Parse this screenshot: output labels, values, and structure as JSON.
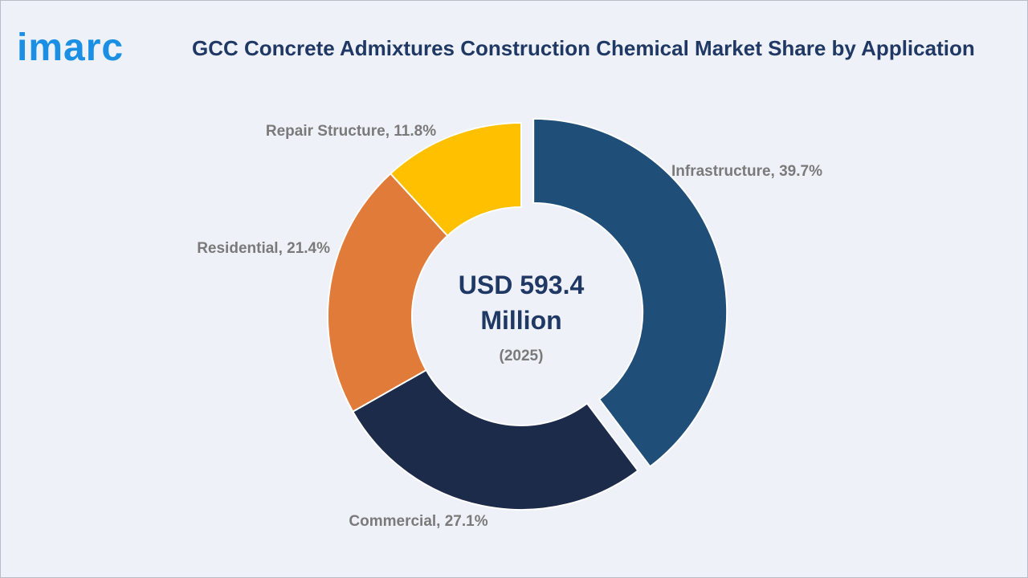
{
  "brand": {
    "name": "imarc"
  },
  "title": "GCC Concrete Admixtures Construction Chemical Market Share by Application",
  "chart_data": {
    "type": "pie",
    "style": "donut",
    "title": "GCC Concrete Admixtures Construction Chemical Market Share by Application",
    "center_label": {
      "value": "USD 593.4 Million",
      "line1": "USD 593.4",
      "line2": "Million",
      "year": "(2025)"
    },
    "unit": "%",
    "slices": [
      {
        "label": "Infrastructure",
        "value": 39.7,
        "text": "Infrastructure, 39.7%",
        "color": "#1f4e79",
        "exploded": true
      },
      {
        "label": "Commercial",
        "value": 27.1,
        "text": "Commercial, 27.1%",
        "color": "#1c2b4a",
        "exploded": false
      },
      {
        "label": "Residential",
        "value": 21.4,
        "text": "Residential, 21.4%",
        "color": "#e07b39",
        "exploded": false
      },
      {
        "label": "Repair Structure",
        "value": 11.8,
        "text": "Repair Structure, 11.8%",
        "color": "#ffc000",
        "exploded": false
      }
    ]
  },
  "colors": {
    "title": "#1f3864",
    "brand": "#1a8fe3",
    "background": "#eef1f7",
    "label": "#7a7a7a"
  }
}
